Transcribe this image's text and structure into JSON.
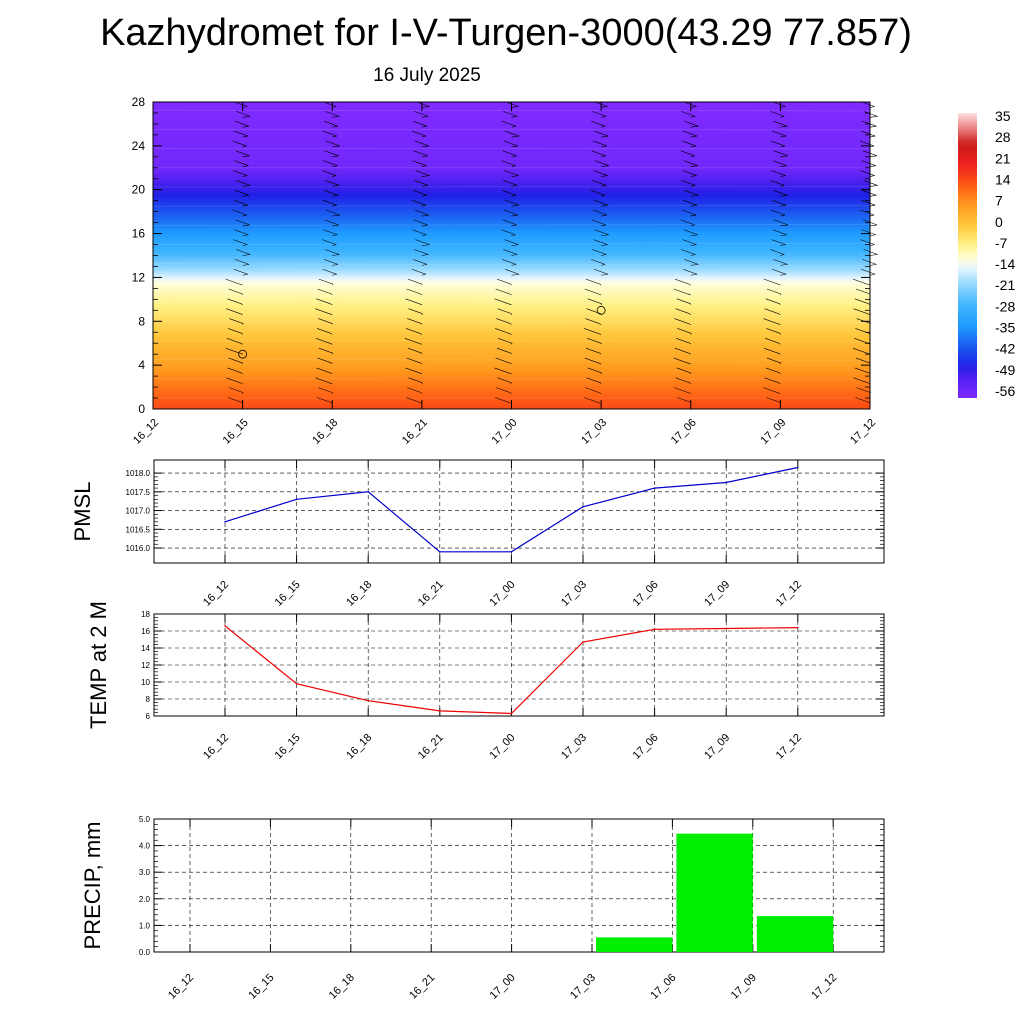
{
  "header": {
    "title": "Kazhydromet for I-V-Turgen-3000(43.29 77.857)",
    "date": "16 July 2025"
  },
  "colorbar": {
    "labels": [
      "35",
      "28",
      "21",
      "14",
      "7",
      "0",
      "-7",
      "-14",
      "-21",
      "-28",
      "-35",
      "-42",
      "-49",
      "-56"
    ]
  },
  "chart_data": [
    {
      "type": "heatmap",
      "name": "temperature-profile",
      "x_tick_labels": [
        "16_12",
        "16_15",
        "16_18",
        "16_21",
        "17_00",
        "17_03",
        "17_06",
        "17_09",
        "17_12"
      ],
      "y_tick_labels": [
        "0",
        "4",
        "8",
        "12",
        "16",
        "20",
        "24",
        "28"
      ],
      "ylim": [
        0,
        28
      ],
      "color_scale": {
        "min": -60,
        "max": 39,
        "stops": [
          {
            "v": -60,
            "c": "#7f2bff"
          },
          {
            "v": -53,
            "c": "#5020f0"
          },
          {
            "v": -49,
            "c": "#2020e6"
          },
          {
            "v": -42,
            "c": "#1c5cf0"
          },
          {
            "v": -35,
            "c": "#1e9cff"
          },
          {
            "v": -28,
            "c": "#3fb5ff"
          },
          {
            "v": -21,
            "c": "#8fd6ff"
          },
          {
            "v": -15,
            "c": "#e6f6ff"
          },
          {
            "v": -12,
            "c": "#fffee0"
          },
          {
            "v": -7,
            "c": "#fff38a"
          },
          {
            "v": 0,
            "c": "#ffc83c"
          },
          {
            "v": 7,
            "c": "#ff9a1e"
          },
          {
            "v": 14,
            "c": "#ff5a14"
          },
          {
            "v": 21,
            "c": "#ee2222"
          },
          {
            "v": 28,
            "c": "#cc1818"
          },
          {
            "v": 35,
            "c": "#f29a9a"
          },
          {
            "v": 39,
            "c": "#fde2e2"
          }
        ]
      },
      "temperature_profile": [
        {
          "height": 0,
          "temp": 16
        },
        {
          "height": 2,
          "temp": 11
        },
        {
          "height": 4,
          "temp": 6
        },
        {
          "height": 6,
          "temp": 2
        },
        {
          "height": 8,
          "temp": -3
        },
        {
          "height": 10,
          "temp": -8
        },
        {
          "height": 11.5,
          "temp": -12
        },
        {
          "height": 12.5,
          "temp": -19
        },
        {
          "height": 14,
          "temp": -27
        },
        {
          "height": 16,
          "temp": -35
        },
        {
          "height": 18,
          "temp": -43
        },
        {
          "height": 19.5,
          "temp": -49
        },
        {
          "height": 20.5,
          "temp": -52
        },
        {
          "height": 22,
          "temp": -58
        },
        {
          "height": 28,
          "temp": -60
        }
      ]
    },
    {
      "type": "line",
      "name": "pmsl",
      "ylabel": "PMSL",
      "categories": [
        "16_12",
        "16_15",
        "16_18",
        "16_21",
        "17_00",
        "17_03",
        "17_06",
        "17_09",
        "17_12"
      ],
      "values": [
        1016.7,
        1017.3,
        1017.5,
        1015.9,
        1015.9,
        1017.1,
        1017.6,
        1017.75,
        1018.15
      ],
      "ylim": [
        1015.6,
        1018.35
      ],
      "y_ticks": [
        "1016.0",
        "1016.5",
        "1017.0",
        "1017.5",
        "1018.0"
      ],
      "line_color": "#0000cc",
      "grid": true
    },
    {
      "type": "line",
      "name": "temp2m",
      "ylabel": "TEMP at 2 M",
      "categories": [
        "16_12",
        "16_15",
        "16_18",
        "16_21",
        "17_00",
        "17_03",
        "17_06",
        "17_09",
        "17_12"
      ],
      "values": [
        16.6,
        9.8,
        7.8,
        6.6,
        6.3,
        14.7,
        16.2,
        16.3,
        16.4
      ],
      "ylim": [
        6,
        18
      ],
      "y_ticks": [
        "6",
        "8",
        "10",
        "12",
        "14",
        "16",
        "18"
      ],
      "line_color": "#ee0000",
      "grid": true
    },
    {
      "type": "bar",
      "name": "precip",
      "ylabel": "PRECIP, mm",
      "categories": [
        "16_12",
        "16_15",
        "16_18",
        "16_21",
        "17_00",
        "17_03",
        "17_06",
        "17_09",
        "17_12"
      ],
      "values": [
        0,
        0,
        0,
        0,
        0,
        0,
        0.55,
        4.45,
        1.35
      ],
      "ylim": [
        0,
        5
      ],
      "y_ticks": [
        "0.0",
        "1.0",
        "2.0",
        "3.0",
        "4.0",
        "5.0"
      ],
      "bar_color": "#00ee00",
      "grid": true
    }
  ]
}
